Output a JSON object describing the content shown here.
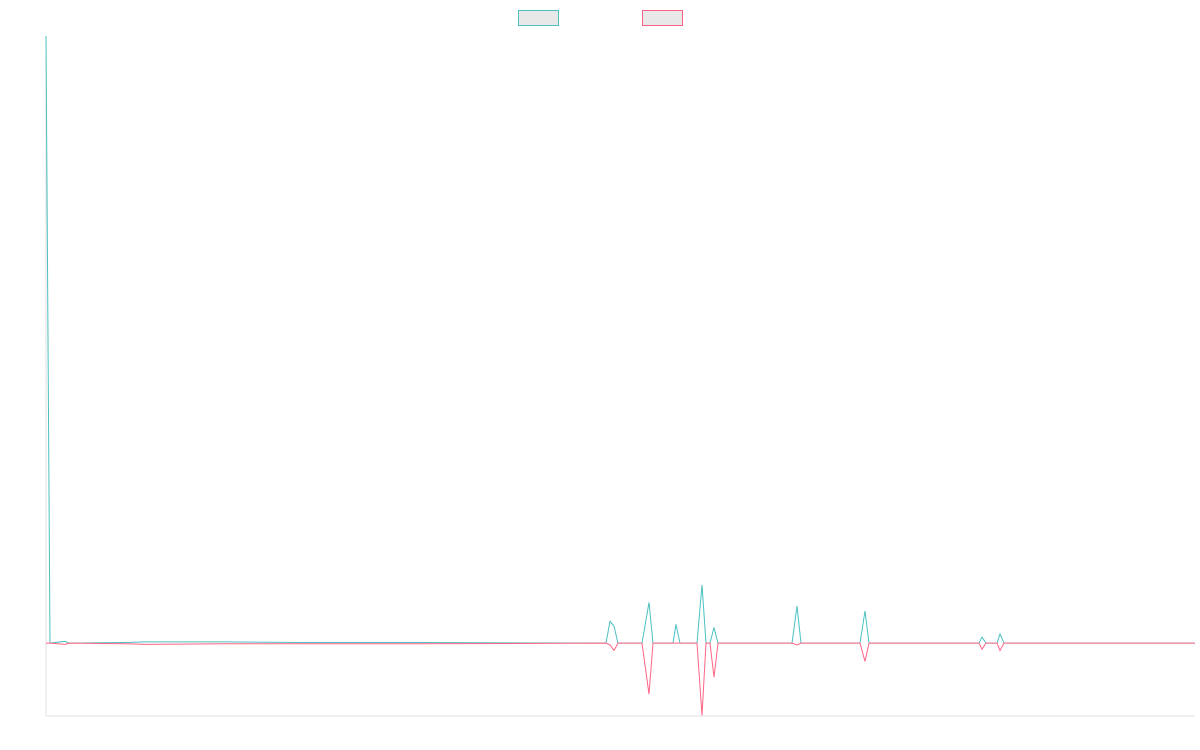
{
  "chart_data": {
    "type": "line",
    "x": [
      0,
      1,
      4.75,
      5.75,
      19.75,
      24.75,
      44.75,
      63.75,
      69.5,
      94.25,
      140,
      141,
      142,
      143,
      149,
      150.75,
      151.75,
      156.75,
      157.5,
      158.5,
      162.75,
      164,
      165,
      166,
      167,
      168,
      186.5,
      187.75,
      188.75,
      203.5,
      204.75,
      205.75,
      233.25,
      234,
      235,
      237.75,
      238.5,
      239.5,
      287.25
    ],
    "series": [
      {
        "color": "#4bc0c0",
        "values": [
          100,
          0,
          0.3,
          0,
          0.1,
          0.2,
          0.2,
          0.1,
          0.1,
          0.1,
          0,
          3.6,
          2.8,
          0,
          0,
          6.7,
          0,
          0,
          3.1,
          0,
          0,
          9.6,
          0,
          0,
          2.6,
          0,
          0,
          6.1,
          0,
          0,
          5.3,
          0,
          0,
          1,
          0,
          0,
          1.5,
          0,
          0
        ]
      },
      {
        "color": "#ff6384",
        "values": [
          0,
          0,
          -0.2,
          0,
          -0.1,
          -0.2,
          -0.1,
          -0.1,
          -0.1,
          -0.1,
          0,
          -0.3,
          -1.2,
          0,
          0,
          -8.4,
          0,
          0,
          0,
          0,
          0,
          -11.9,
          0,
          0,
          -5.6,
          0,
          0,
          -0.3,
          0,
          0,
          -3,
          0,
          0,
          -1,
          0,
          0,
          -1.2,
          0,
          0
        ]
      }
    ],
    "xlim": [
      0,
      287.25
    ],
    "ylim": [
      -12,
      100
    ],
    "legend": "top"
  }
}
